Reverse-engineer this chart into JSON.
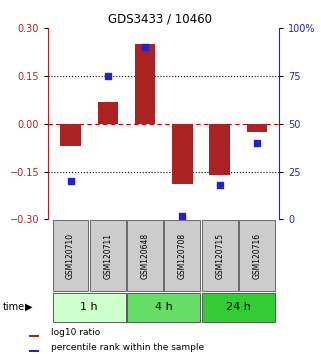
{
  "title": "GDS3433 / 10460",
  "samples": [
    "GSM120710",
    "GSM120711",
    "GSM120648",
    "GSM120708",
    "GSM120715",
    "GSM120716"
  ],
  "log10_ratio": [
    -0.07,
    0.07,
    0.25,
    -0.19,
    -0.16,
    -0.025
  ],
  "percentile_rank": [
    20,
    75,
    90,
    2,
    18,
    40
  ],
  "ylim_left": [
    -0.3,
    0.3
  ],
  "ylim_right": [
    0,
    100
  ],
  "yticks_left": [
    -0.3,
    -0.15,
    0,
    0.15,
    0.3
  ],
  "yticks_right": [
    0,
    25,
    50,
    75,
    100
  ],
  "ytick_labels_right": [
    "0",
    "25",
    "50",
    "75",
    "100%"
  ],
  "bar_color": "#aa2222",
  "dot_color": "#2222cc",
  "hline_color": "#cc0000",
  "dotted_hlines": [
    -0.15,
    0.15
  ],
  "time_groups": [
    {
      "label": "1 h",
      "start": 0,
      "end": 1,
      "color": "#ccffcc"
    },
    {
      "label": "4 h",
      "start": 2,
      "end": 3,
      "color": "#66dd66"
    },
    {
      "label": "24 h",
      "start": 4,
      "end": 5,
      "color": "#33cc33"
    }
  ],
  "legend_items": [
    {
      "label": "log10 ratio",
      "color": "#aa2222"
    },
    {
      "label": "percentile rank within the sample",
      "color": "#2222cc"
    }
  ],
  "sample_box_color": "#cccccc",
  "time_label": "time",
  "bar_width": 0.55
}
